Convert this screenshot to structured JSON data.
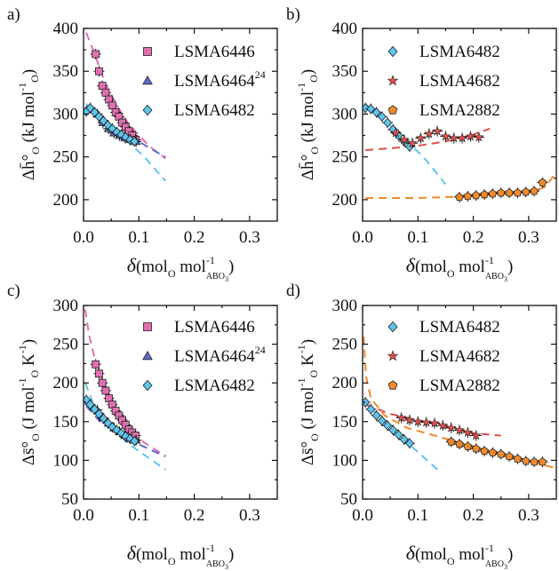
{
  "chart_data": [
    {
      "panel_letter": "a)",
      "type": "scatter",
      "ylabel_main": "Δh̄°",
      "ylabel_sub": "O",
      "ylabel_unit": "(kJ mol",
      "ylabel_unit_sup": "-1",
      "ylabel_unit_sub": "O",
      "ylabel_close": ")",
      "xlabel_delta": "δ",
      "xlabel_unit": "(mol",
      "xlabel_unit_sub": "O",
      "xlabel_unit2": " mol",
      "xlabel_unit2_sup": "-1",
      "xlabel_unit2_sub": "ABO",
      "xlabel_unit2_subsub": "3",
      "xlabel_close": ")",
      "xlim": [
        0,
        0.35
      ],
      "ylim": [
        175,
        400
      ],
      "xticks": [
        "0.0",
        "0.1",
        "0.2",
        "0.3"
      ],
      "yticks": [
        "200",
        "250",
        "300",
        "350",
        "400"
      ],
      "legend": "top-right",
      "series": [
        {
          "name": "LSMA6446",
          "marker": "square",
          "color": "#e070b0",
          "x": [
            0.022,
            0.028,
            0.034,
            0.04,
            0.046,
            0.052,
            0.058,
            0.064,
            0.07,
            0.076,
            0.082,
            0.088,
            0.094
          ],
          "y": [
            370,
            350,
            333,
            325,
            317,
            310,
            302,
            297,
            290,
            285,
            280,
            275,
            270
          ]
        },
        {
          "name": "LSMA6464",
          "name_sup": "24",
          "marker": "triangle",
          "color": "#5b6ccf",
          "x": [
            0.025,
            0.035,
            0.045,
            0.055,
            0.065,
            0.075,
            0.085,
            0.095
          ],
          "y": [
            300,
            290,
            283,
            278,
            275,
            272,
            270,
            268
          ]
        },
        {
          "name": "LSMA6482",
          "marker": "diamond",
          "color": "#5fc4ee",
          "x": [
            0.005,
            0.012,
            0.02,
            0.028,
            0.036,
            0.044,
            0.052,
            0.06,
            0.068,
            0.076,
            0.084,
            0.092
          ],
          "y": [
            303,
            307,
            302,
            297,
            292,
            287,
            283,
            279,
            276,
            273,
            270,
            268
          ]
        }
      ],
      "fits": [
        {
          "color": "#e070b0",
          "x": [
            0.005,
            0.02,
            0.04,
            0.06,
            0.08,
            0.1,
            0.12,
            0.148
          ],
          "y": [
            395,
            370,
            335,
            310,
            290,
            275,
            262,
            248
          ]
        },
        {
          "color": "#5b6ccf",
          "x": [
            0.005,
            0.03,
            0.06,
            0.09,
            0.12,
            0.148
          ],
          "y": [
            310,
            295,
            282,
            272,
            260,
            250
          ]
        },
        {
          "color": "#5fc4ee",
          "x": [
            0.005,
            0.04,
            0.08,
            0.11,
            0.148
          ],
          "y": [
            312,
            292,
            268,
            250,
            222
          ]
        }
      ]
    },
    {
      "panel_letter": "b)",
      "type": "scatter",
      "ylabel_main": "Δh̄°",
      "ylabel_sub": "O",
      "ylabel_unit": "(kJ mol",
      "ylabel_unit_sup": "-1",
      "ylabel_unit_sub": "O",
      "ylabel_close": ")",
      "xlabel_delta": "δ",
      "xlabel_unit": "(mol",
      "xlabel_unit_sub": "O",
      "xlabel_unit2": " mol",
      "xlabel_unit2_sup": "-1",
      "xlabel_unit2_sub": "ABO",
      "xlabel_unit2_subsub": "3",
      "xlabel_close": ")",
      "xlim": [
        0,
        0.35
      ],
      "ylim": [
        175,
        400
      ],
      "xticks": [
        "0.0",
        "0.1",
        "0.2",
        "0.3"
      ],
      "yticks": [
        "200",
        "250",
        "300",
        "350",
        "400"
      ],
      "legend": "top-right",
      "series": [
        {
          "name": "LSMA6482",
          "marker": "diamond",
          "color": "#5fc4ee",
          "x": [
            0.005,
            0.015,
            0.025,
            0.035,
            0.045,
            0.055,
            0.065,
            0.075,
            0.085
          ],
          "y": [
            307,
            306,
            302,
            297,
            290,
            282,
            275,
            268,
            262
          ]
        },
        {
          "name": "LSMA4682",
          "marker": "star",
          "color": "#e0504a",
          "x": [
            0.06,
            0.075,
            0.09,
            0.105,
            0.12,
            0.135,
            0.15,
            0.165,
            0.18,
            0.195,
            0.21
          ],
          "y": [
            278,
            270,
            266,
            272,
            277,
            280,
            274,
            272,
            272,
            274,
            273
          ]
        },
        {
          "name": "LSMA2882",
          "marker": "pentagon",
          "color": "#f08a2c",
          "x": [
            0.175,
            0.19,
            0.205,
            0.22,
            0.235,
            0.25,
            0.265,
            0.28,
            0.295,
            0.31,
            0.325
          ],
          "y": [
            203,
            204,
            205,
            206,
            207,
            208,
            208,
            208,
            209,
            210,
            220
          ]
        }
      ],
      "fits": [
        {
          "color": "#5fc4ee",
          "x": [
            0.005,
            0.04,
            0.08,
            0.11,
            0.15
          ],
          "y": [
            312,
            292,
            268,
            250,
            218
          ]
        },
        {
          "color": "#e0504a",
          "x": [
            0.005,
            0.05,
            0.1,
            0.15,
            0.2,
            0.23
          ],
          "y": [
            258,
            260,
            263,
            268,
            276,
            283
          ]
        },
        {
          "color": "#f08a2c",
          "x": [
            0.005,
            0.1,
            0.2,
            0.3,
            0.33,
            0.35
          ],
          "y": [
            202,
            202,
            204,
            208,
            215,
            232
          ]
        }
      ]
    },
    {
      "panel_letter": "c)",
      "type": "scatter",
      "ylabel_main": "Δs̄°",
      "ylabel_sub": "O",
      "ylabel_unit": "(J mol",
      "ylabel_unit_sup": "-1",
      "ylabel_unit_sub": "O",
      "ylabel_unit_k": "K",
      "ylabel_unit_k_sup": "-1",
      "ylabel_close": ")",
      "xlabel_delta": "δ",
      "xlabel_unit": "(mol",
      "xlabel_unit_sub": "O",
      "xlabel_unit2": " mol",
      "xlabel_unit2_sup": "-1",
      "xlabel_unit2_sub": "ABO",
      "xlabel_unit2_subsub": "3",
      "xlabel_close": ")",
      "xlim": [
        0,
        0.35
      ],
      "ylim": [
        50,
        300
      ],
      "xticks": [
        "0.0",
        "0.1",
        "0.2",
        "0.3"
      ],
      "yticks": [
        "50",
        "100",
        "150",
        "200",
        "250",
        "300"
      ],
      "legend": "top-right",
      "series": [
        {
          "name": "LSMA6446",
          "marker": "square",
          "color": "#e070b0",
          "x": [
            0.022,
            0.028,
            0.034,
            0.04,
            0.046,
            0.052,
            0.058,
            0.064,
            0.07,
            0.076,
            0.082,
            0.088,
            0.094
          ],
          "y": [
            224,
            212,
            200,
            190,
            180,
            172,
            164,
            158,
            152,
            146,
            140,
            136,
            132
          ]
        },
        {
          "name": "LSMA6464",
          "name_sup": "24",
          "marker": "triangle",
          "color": "#5b6ccf",
          "x": [
            0.025,
            0.035,
            0.045,
            0.055,
            0.065,
            0.075,
            0.085,
            0.095
          ],
          "y": [
            165,
            155,
            148,
            142,
            137,
            132,
            128,
            126
          ]
        },
        {
          "name": "LSMA6482",
          "marker": "diamond",
          "color": "#5fc4ee",
          "x": [
            0.005,
            0.012,
            0.02,
            0.028,
            0.036,
            0.044,
            0.052,
            0.06,
            0.068,
            0.076,
            0.084,
            0.092
          ],
          "y": [
            178,
            172,
            166,
            160,
            154,
            148,
            143,
            139,
            135,
            131,
            128,
            125
          ]
        }
      ],
      "fits": [
        {
          "color": "#e070b0",
          "x": [
            0.003,
            0.01,
            0.02,
            0.04,
            0.06,
            0.08,
            0.1,
            0.12,
            0.148
          ],
          "y": [
            295,
            262,
            232,
            190,
            163,
            143,
            128,
            118,
            106
          ]
        },
        {
          "color": "#5b6ccf",
          "x": [
            0.005,
            0.03,
            0.06,
            0.09,
            0.12,
            0.148
          ],
          "y": [
            170,
            150,
            137,
            124,
            114,
            105
          ]
        },
        {
          "color": "#5fc4ee",
          "x": [
            0.003,
            0.02,
            0.05,
            0.08,
            0.11,
            0.148
          ],
          "y": [
            200,
            168,
            143,
            122,
            107,
            88
          ]
        }
      ]
    },
    {
      "panel_letter": "d)",
      "type": "scatter",
      "ylabel_main": "Δs̄°",
      "ylabel_sub": "O",
      "ylabel_unit": "(J mol",
      "ylabel_unit_sup": "-1",
      "ylabel_unit_sub": "O",
      "ylabel_unit_k": "K",
      "ylabel_unit_k_sup": "-1",
      "ylabel_close": ")",
      "xlabel_delta": "δ",
      "xlabel_unit": "(mol",
      "xlabel_unit_sub": "O",
      "xlabel_unit2": " mol",
      "xlabel_unit2_sup": "-1",
      "xlabel_unit2_sub": "ABO",
      "xlabel_unit2_subsub": "3",
      "xlabel_close": ")",
      "xlim": [
        0,
        0.35
      ],
      "ylim": [
        50,
        300
      ],
      "xticks": [
        "0.0",
        "0.1",
        "0.2",
        "0.3"
      ],
      "yticks": [
        "50",
        "100",
        "150",
        "200",
        "250",
        "300"
      ],
      "legend": "top-right",
      "series": [
        {
          "name": "LSMA6482",
          "marker": "diamond",
          "color": "#5fc4ee",
          "x": [
            0.005,
            0.015,
            0.025,
            0.035,
            0.045,
            0.055,
            0.065,
            0.075,
            0.085
          ],
          "y": [
            175,
            166,
            158,
            151,
            145,
            139,
            133,
            127,
            122
          ]
        },
        {
          "name": "LSMA4682",
          "marker": "star",
          "color": "#e0504a",
          "x": [
            0.07,
            0.085,
            0.1,
            0.115,
            0.13,
            0.145,
            0.16,
            0.175,
            0.19,
            0.205
          ],
          "y": [
            155,
            152,
            150,
            149,
            148,
            145,
            142,
            139,
            136,
            132
          ]
        },
        {
          "name": "LSMA2882",
          "marker": "pentagon",
          "color": "#f08a2c",
          "x": [
            0.16,
            0.175,
            0.19,
            0.205,
            0.22,
            0.235,
            0.25,
            0.265,
            0.28,
            0.295,
            0.31,
            0.325
          ],
          "y": [
            124,
            121,
            118,
            115,
            112,
            110,
            108,
            105,
            102,
            99,
            98,
            98
          ]
        }
      ],
      "fits": [
        {
          "color": "#5fc4ee",
          "x": [
            0.003,
            0.03,
            0.06,
            0.09,
            0.12,
            0.14
          ],
          "y": [
            178,
            155,
            136,
            117,
            98,
            85
          ]
        },
        {
          "color": "#e0504a",
          "x": [
            0.005,
            0.05,
            0.1,
            0.15,
            0.2,
            0.25
          ],
          "y": [
            172,
            160,
            152,
            143,
            135,
            132
          ]
        },
        {
          "color": "#f08a2c",
          "x": [
            0.002,
            0.006,
            0.015,
            0.04,
            0.08,
            0.14,
            0.2,
            0.26,
            0.32,
            0.35
          ],
          "y": [
            260,
            210,
            180,
            158,
            142,
            130,
            118,
            107,
            95,
            90
          ]
        }
      ]
    }
  ]
}
